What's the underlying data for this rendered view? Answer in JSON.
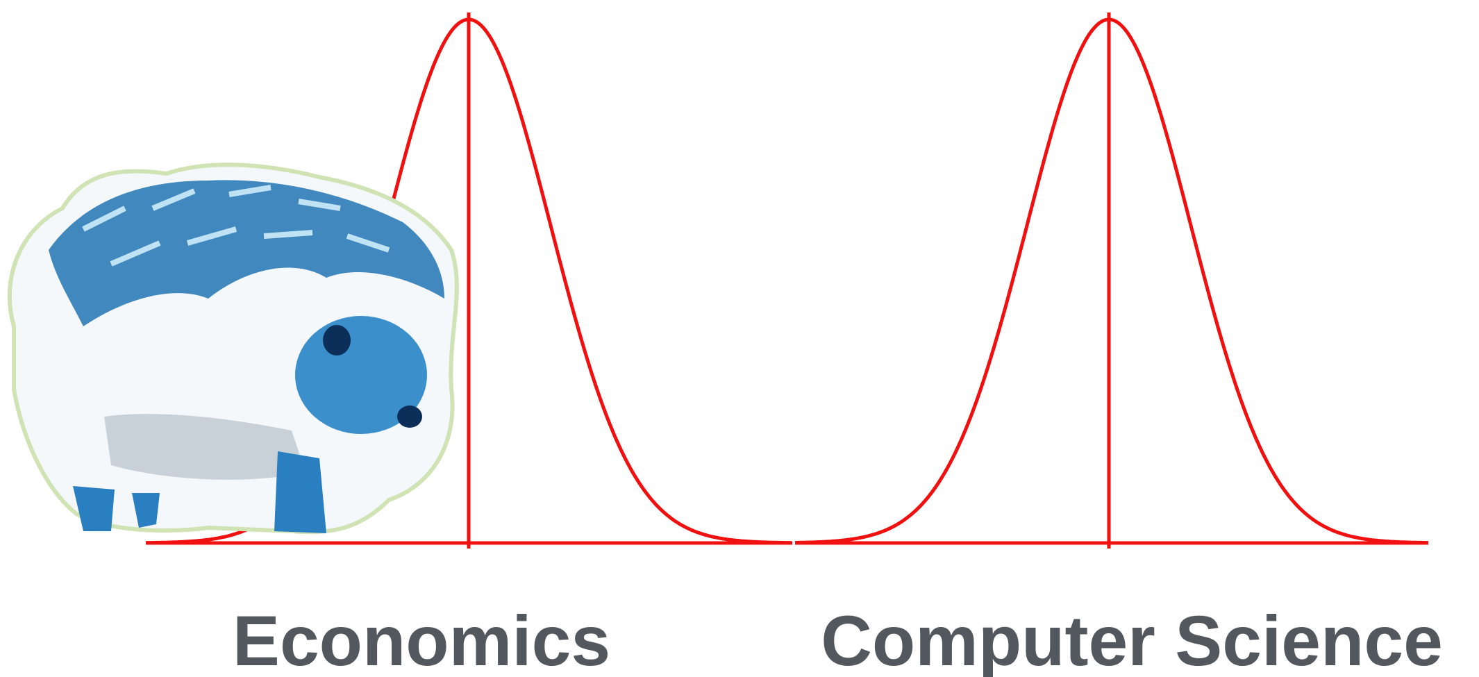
{
  "labels": {
    "left": "Economics",
    "right": "Computer Science"
  }
}
